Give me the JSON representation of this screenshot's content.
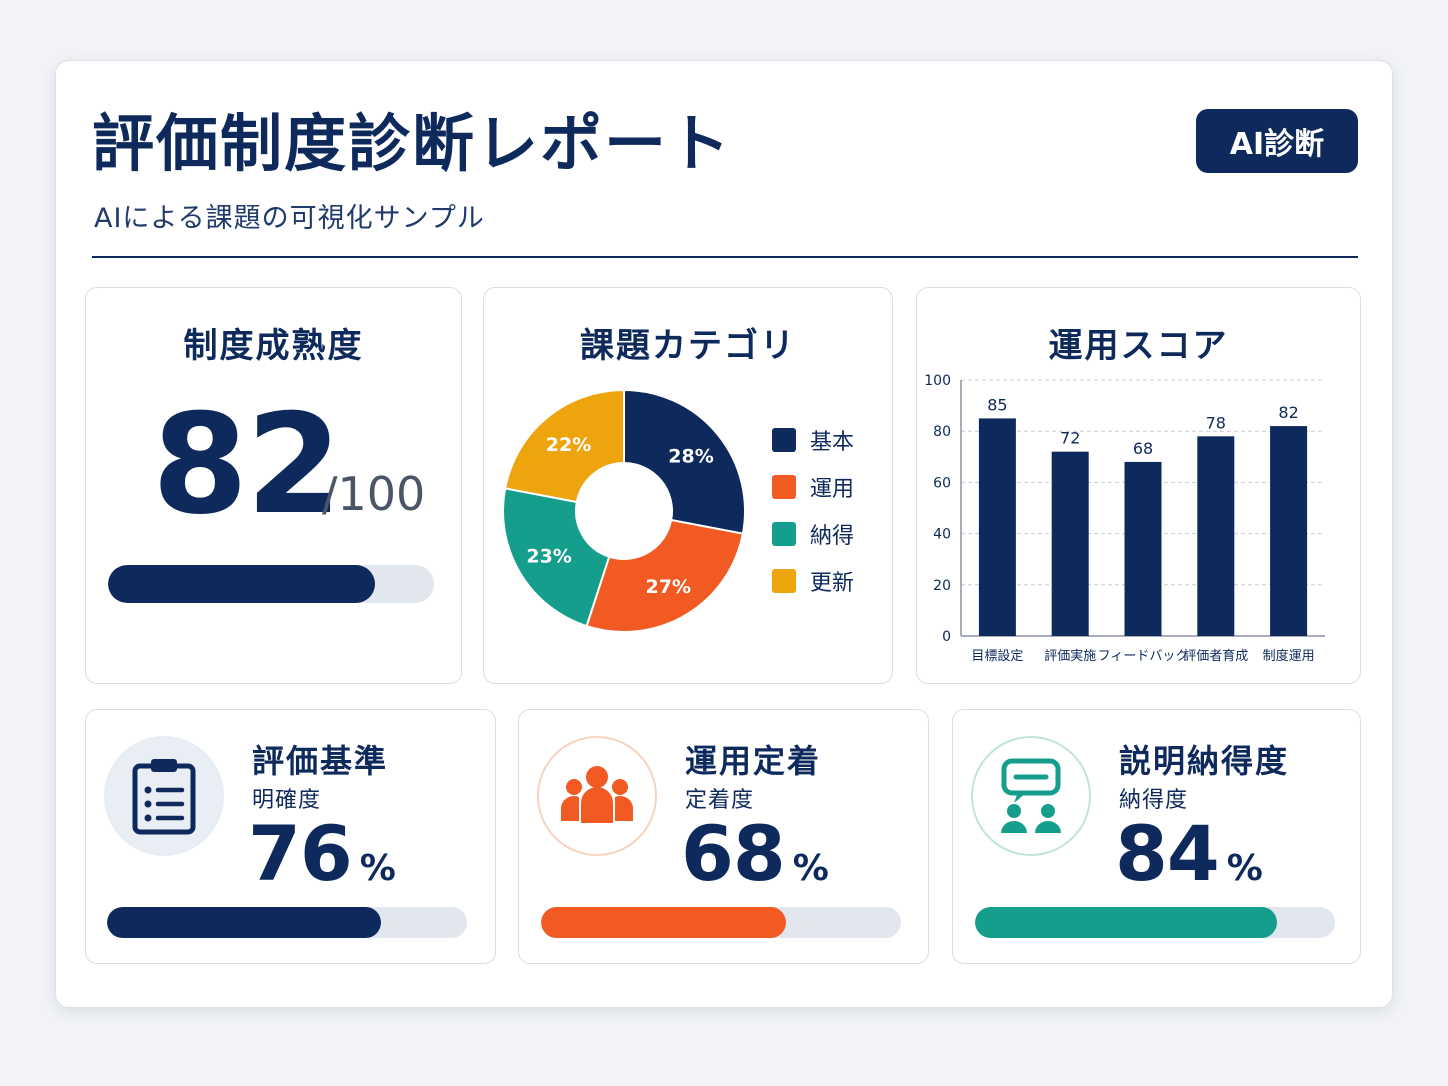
{
  "header": {
    "title": "評価制度診断レポート",
    "subtitle": "AIによる課題の可視化サンプル",
    "badge": "AI診断"
  },
  "maturity": {
    "title": "制度成熟度",
    "score": "82",
    "max": "/100",
    "progress": 0.82,
    "color": "#0e2a5c"
  },
  "metrics": [
    {
      "title": "評価基準",
      "sub": "明確度",
      "value": "76",
      "unit": "%",
      "progress": 0.76,
      "color": "#0e2a5c",
      "icon": "clipboard-list-icon"
    },
    {
      "title": "運用定着",
      "sub": "定着度",
      "value": "68",
      "unit": "%",
      "progress": 0.68,
      "color": "#f15a22",
      "icon": "people-group-icon"
    },
    {
      "title": "説明納得度",
      "sub": "納得度",
      "value": "84",
      "unit": "%",
      "progress": 0.84,
      "color": "#159e8c",
      "icon": "chat-people-icon"
    }
  ],
  "chart_data": [
    {
      "type": "pie",
      "title": "課題カテゴリ",
      "categories": [
        "基本",
        "運用",
        "納得",
        "更新"
      ],
      "values": [
        28,
        27,
        23,
        22
      ],
      "labels": [
        "28%",
        "27%",
        "23%",
        "22%"
      ],
      "colors": [
        "#0e2a5c",
        "#f15a22",
        "#159e8c",
        "#eea40c"
      ],
      "donut": true,
      "legend": "right"
    },
    {
      "type": "bar",
      "title": "運用スコア",
      "categories": [
        "目標設定",
        "評価実施",
        "フィードバック",
        "評価者育成",
        "制度運用"
      ],
      "values": [
        85,
        72,
        68,
        78,
        82
      ],
      "ylim": [
        0,
        100
      ],
      "yticks": [
        0,
        20,
        40,
        60,
        80,
        100
      ],
      "grid": true,
      "color": "#0e2a5c"
    }
  ]
}
